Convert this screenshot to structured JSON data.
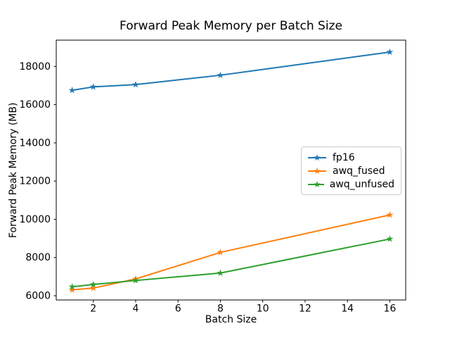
{
  "chart_data": {
    "type": "line",
    "title": "Forward Peak Memory per Batch Size",
    "xlabel": "Batch Size",
    "ylabel": "Forward Peak Memory (MB)",
    "x": [
      1,
      2,
      4,
      8,
      16
    ],
    "series": [
      {
        "name": "fp16",
        "color": "#1f77b4",
        "values": [
          16750,
          16930,
          17050,
          17540,
          18750
        ]
      },
      {
        "name": "awq_fused",
        "color": "#ff7f0e",
        "values": [
          6310,
          6400,
          6880,
          8270,
          10230
        ]
      },
      {
        "name": "awq_unfused",
        "color": "#2ca02c",
        "values": [
          6470,
          6590,
          6800,
          7190,
          8970
        ]
      }
    ],
    "xticks": [
      2,
      4,
      6,
      8,
      10,
      12,
      14,
      16
    ],
    "yticks": [
      6000,
      8000,
      10000,
      12000,
      14000,
      16000,
      18000
    ],
    "xlim": [
      0.25,
      16.75
    ],
    "ylim": [
      5780,
      19375
    ],
    "marker": "star",
    "grid": false,
    "legend_position": "center right",
    "background_color": "#ffffff",
    "axis_color": "#000000"
  }
}
